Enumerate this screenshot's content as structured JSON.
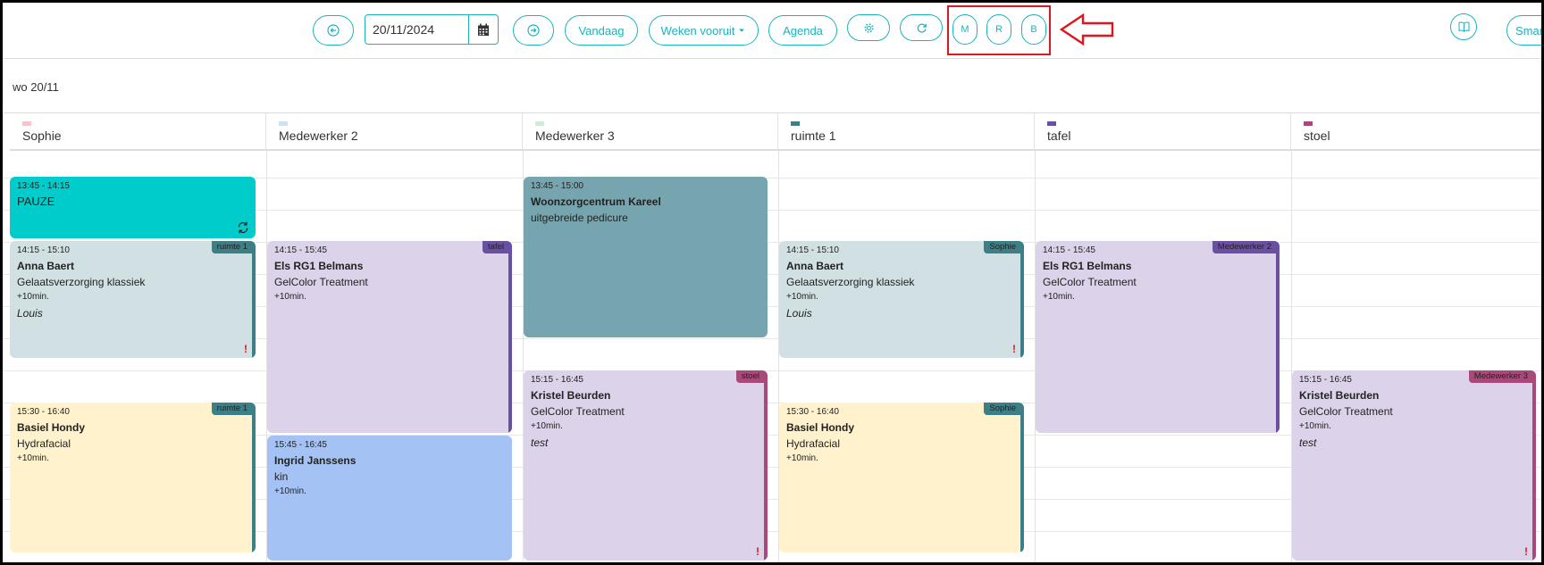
{
  "toolbar": {
    "date_value": "20/11/2024",
    "today_label": "Vandaag",
    "weeks_ahead_label": "Weken vooruit",
    "agenda_label": "Agenda",
    "view_m_label": "M",
    "view_r_label": "R",
    "view_b_label": "B",
    "smart_label": "Smar"
  },
  "day_label": "wo 20/11",
  "columns": [
    {
      "name": "Sophie",
      "color": "#f4c6cc"
    },
    {
      "name": "Medewerker 2",
      "color": "#cfe0f3"
    },
    {
      "name": "Medewerker 3",
      "color": "#d2ead8"
    },
    {
      "name": "ruimte 1",
      "color": "#3d7f86"
    },
    {
      "name": "tafel",
      "color": "#6a4fa3"
    },
    {
      "name": "stoel",
      "color": "#a8497a"
    }
  ],
  "events": {
    "c1e1": {
      "time": "13:45 - 14:15",
      "name": "PAUZE"
    },
    "c1e2": {
      "time": "14:15 - 15:10",
      "name": "Anna Baert",
      "service": "Gelaatsverzorging klassiek",
      "extra": "+10min.",
      "employee": "Louis",
      "tag": "ruimte 1"
    },
    "c1e3": {
      "time": "15:30 - 16:40",
      "name": "Basiel Hondy",
      "service": "Hydrafacial",
      "extra": "+10min.",
      "tag": "ruimte 1"
    },
    "c2e1": {
      "time": "14:15 - 15:45",
      "name": "Els RG1 Belmans",
      "service": "GelColor Treatment",
      "extra": "+10min.",
      "tag": "tafel"
    },
    "c2e2": {
      "time": "15:45 - 16:45",
      "name": "Ingrid Janssens",
      "service": "kin",
      "extra": "+10min."
    },
    "c3e1": {
      "time": "13:45 - 15:00",
      "name": "Woonzorgcentrum Kareel",
      "service": "uitgebreide pedicure"
    },
    "c3e2": {
      "time": "15:15 - 16:45",
      "name": "Kristel Beurden",
      "service": "GelColor Treatment",
      "extra": "+10min.",
      "employee": "test",
      "tag": "stoel"
    },
    "c4e1": {
      "time": "14:15 - 15:10",
      "name": "Anna Baert",
      "service": "Gelaatsverzorging klassiek",
      "extra": "+10min.",
      "employee": "Louis",
      "tag": "Sophie"
    },
    "c4e2": {
      "time": "15:30 - 16:40",
      "name": "Basiel Hondy",
      "service": "Hydrafacial",
      "extra": "+10min.",
      "tag": "Sophie"
    },
    "c5e1": {
      "time": "14:15 - 15:45",
      "name": "Els RG1 Belmans",
      "service": "GelColor Treatment",
      "extra": "+10min.",
      "tag": "Medewerker 2"
    },
    "c6e1": {
      "time": "15:15 - 16:45",
      "name": "Kristel Beurden",
      "service": "GelColor Treatment",
      "extra": "+10min.",
      "employee": "test",
      "tag": "Medewerker 3"
    }
  },
  "warning_mark": "!",
  "icons": [
    "arrow-left-circle-icon",
    "calendar-icon",
    "arrow-right-circle-icon",
    "caret-down-icon",
    "gear-icon",
    "refresh-icon",
    "book-icon",
    "sync-icon"
  ],
  "colors": {
    "accent": "#1ab3bd",
    "pause": "#00cccc",
    "teal_event": "#d0e0e3",
    "purple_event": "#dcd2e9",
    "yellow_event": "#fff2cc",
    "blue_event": "#a4c2f4",
    "grey_teal_event": "#76a5af",
    "highlight": "#e0161e"
  }
}
